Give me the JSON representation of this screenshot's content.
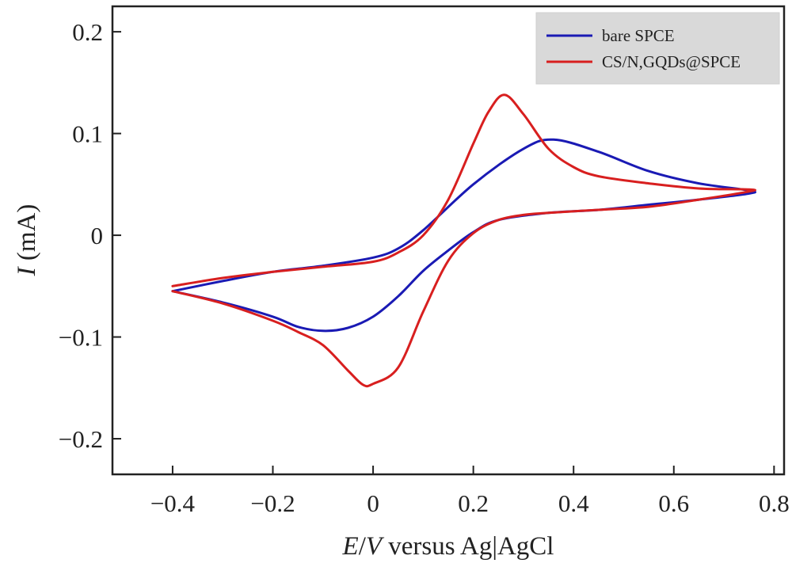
{
  "chart_data": {
    "type": "line",
    "title": "",
    "xlabel": {
      "var": "E",
      "sep": "/",
      "unit": "V",
      "rest": " versus Ag|AgCl"
    },
    "ylabel": {
      "var": "I",
      "rest": " (mA)"
    },
    "xlim": [
      -0.52,
      0.82
    ],
    "ylim": [
      -0.235,
      0.225
    ],
    "xticks": [
      -0.4,
      -0.2,
      0,
      0.2,
      0.4,
      0.6,
      0.8
    ],
    "xtick_labels": [
      "−0.4",
      "−0.2",
      "0",
      "0.2",
      "0.4",
      "0.6",
      "0.8"
    ],
    "yticks": [
      0.2,
      0.1,
      0,
      -0.1,
      -0.2
    ],
    "ytick_labels": [
      "0.2",
      "0.1",
      "0",
      "−0.1",
      "−0.2"
    ],
    "grid": false,
    "legend_position": "top-right",
    "series": [
      {
        "name": "bare SPCE",
        "color": "#1a1ab4",
        "x": [
          -0.4,
          -0.3,
          -0.2,
          -0.1,
          0,
          0.05,
          0.1,
          0.2,
          0.3,
          0.36,
          0.45,
          0.55,
          0.65,
          0.75,
          0.75,
          0.65,
          0.55,
          0.45,
          0.35,
          0.25,
          0.2,
          0.15,
          0.1,
          0.05,
          0,
          -0.05,
          -0.1,
          -0.15,
          -0.2,
          -0.3,
          -0.4
        ],
        "y": [
          -0.055,
          -0.045,
          -0.036,
          -0.03,
          -0.022,
          -0.013,
          0.005,
          0.05,
          0.085,
          0.094,
          0.082,
          0.063,
          0.051,
          0.044,
          0.041,
          0.035,
          0.03,
          0.025,
          0.022,
          0.015,
          0.003,
          -0.015,
          -0.035,
          -0.06,
          -0.08,
          -0.091,
          -0.094,
          -0.09,
          -0.08,
          -0.066,
          -0.055
        ]
      },
      {
        "name": "CS/N,GQDs@SPCE",
        "color": "#d81f1f",
        "x": [
          -0.4,
          -0.3,
          -0.2,
          -0.1,
          0,
          0.05,
          0.1,
          0.15,
          0.2,
          0.23,
          0.262,
          0.3,
          0.35,
          0.4,
          0.45,
          0.55,
          0.65,
          0.75,
          0.75,
          0.65,
          0.55,
          0.45,
          0.35,
          0.3,
          0.25,
          0.2,
          0.15,
          0.1,
          0.05,
          0,
          -0.02,
          -0.05,
          -0.1,
          -0.15,
          -0.2,
          -0.3,
          -0.4
        ],
        "y": [
          -0.05,
          -0.042,
          -0.036,
          -0.031,
          -0.026,
          -0.017,
          0,
          0.035,
          0.09,
          0.121,
          0.138,
          0.119,
          0.085,
          0.067,
          0.058,
          0.051,
          0.046,
          0.045,
          0.043,
          0.035,
          0.028,
          0.025,
          0.022,
          0.02,
          0.015,
          0.002,
          -0.025,
          -0.075,
          -0.13,
          -0.146,
          -0.147,
          -0.133,
          -0.108,
          -0.095,
          -0.084,
          -0.067,
          -0.055
        ]
      }
    ]
  }
}
